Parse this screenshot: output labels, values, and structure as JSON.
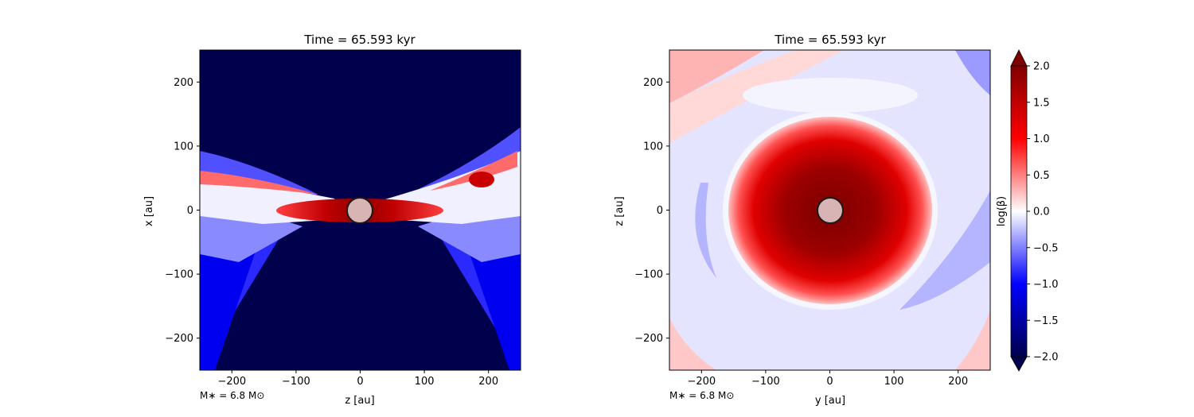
{
  "chart_data": [
    {
      "type": "heatmap",
      "title": "Time = 65.593 kyr",
      "xlabel": "z [au]",
      "ylabel": "x [au]",
      "xlim": [
        -250,
        250
      ],
      "ylim": [
        -250,
        250
      ],
      "xticks": [
        -200,
        -100,
        0,
        100,
        200
      ],
      "yticks": [
        -200,
        -100,
        0,
        100,
        200
      ],
      "annotation": "M∗ = 6.8 M⊙",
      "colormap": "seismic",
      "sink": {
        "center": [
          0,
          0
        ],
        "radius_au": 20,
        "color": "#d8b4b4"
      }
    },
    {
      "type": "heatmap",
      "title": "Time = 65.593 kyr",
      "xlabel": "y [au]",
      "ylabel": "z [au]",
      "xlim": [
        -250,
        250
      ],
      "ylim": [
        -250,
        250
      ],
      "xticks": [
        -200,
        -100,
        0,
        100,
        200
      ],
      "yticks": [
        -200,
        -100,
        0,
        100,
        200
      ],
      "annotation": "M∗ = 6.8 M⊙",
      "colormap": "seismic",
      "sink": {
        "center": [
          0,
          0
        ],
        "radius_au": 20,
        "color": "#d8b4b4"
      }
    }
  ],
  "colorbar": {
    "label": "log(β)",
    "range": [
      -2.0,
      2.0
    ],
    "extend": "both",
    "ticks": [
      "−2.0",
      "−1.5",
      "−1.0",
      "−0.5",
      "0.0",
      "0.5",
      "1.0",
      "1.5",
      "2.0"
    ],
    "tick_values": [
      -2.0,
      -1.5,
      -1.0,
      -0.5,
      0.0,
      0.5,
      1.0,
      1.5,
      2.0
    ],
    "colors": {
      "low": "#00004c",
      "mid_low": "#0000ff",
      "center": "#ffffff",
      "mid_high": "#ff0000",
      "high": "#800000"
    }
  }
}
